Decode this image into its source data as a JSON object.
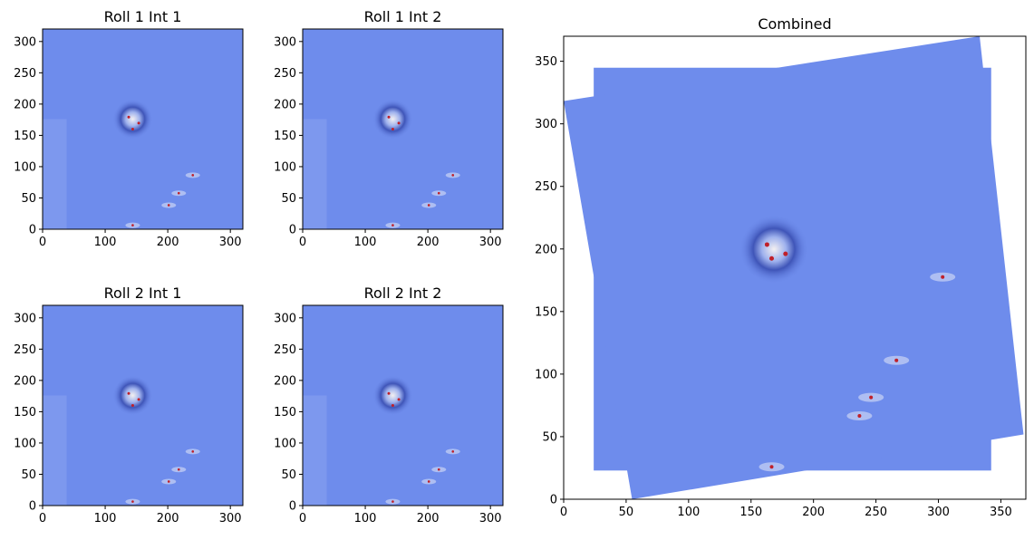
{
  "chart_data": [
    {
      "type": "image",
      "title": "Roll 1 Int 1",
      "xlim": [
        0,
        320
      ],
      "ylim": [
        0,
        320
      ],
      "xticks": [
        0,
        100,
        200,
        300
      ],
      "yticks": [
        0,
        50,
        100,
        150,
        200,
        250,
        300
      ]
    },
    {
      "type": "image",
      "title": "Roll 1 Int 2",
      "xlim": [
        0,
        320
      ],
      "ylim": [
        0,
        320
      ],
      "xticks": [
        0,
        100,
        200,
        300
      ],
      "yticks": [
        0,
        50,
        100,
        150,
        200,
        250,
        300
      ]
    },
    {
      "type": "image",
      "title": "Roll 2 Int 1",
      "xlim": [
        0,
        320
      ],
      "ylim": [
        0,
        320
      ],
      "xticks": [
        0,
        100,
        200,
        300
      ],
      "yticks": [
        0,
        50,
        100,
        150,
        200,
        250,
        300
      ]
    },
    {
      "type": "image",
      "title": "Roll 2 Int 2",
      "xlim": [
        0,
        320
      ],
      "ylim": [
        0,
        320
      ],
      "xticks": [
        0,
        100,
        200,
        300
      ],
      "yticks": [
        0,
        50,
        100,
        150,
        200,
        250,
        300
      ]
    },
    {
      "type": "mosaic",
      "title": "Combined",
      "xlim": [
        0,
        370
      ],
      "ylim": [
        0,
        370
      ],
      "xticks": [
        0,
        50,
        100,
        150,
        200,
        250,
        300,
        350
      ],
      "yticks": [
        0,
        50,
        100,
        150,
        200,
        250,
        300,
        350
      ]
    }
  ]
}
